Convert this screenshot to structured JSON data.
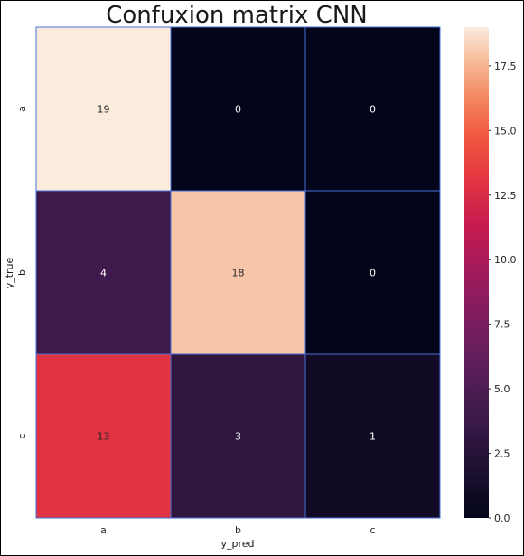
{
  "chart_data": {
    "type": "heatmap",
    "title": "Confuxion matrix CNN",
    "xlabel": "y_pred",
    "ylabel": "y_true",
    "x_categories": [
      "a",
      "b",
      "c"
    ],
    "y_categories": [
      "a",
      "b",
      "c"
    ],
    "values": [
      [
        19,
        0,
        0
      ],
      [
        4,
        18,
        0
      ],
      [
        13,
        3,
        1
      ]
    ],
    "colorbar": {
      "range": [
        0,
        19
      ],
      "ticks": [
        0.0,
        2.5,
        5.0,
        7.5,
        10.0,
        12.5,
        15.0,
        17.5
      ],
      "tick_labels": [
        "0.0",
        "2.5",
        "5.0",
        "7.5",
        "10.0",
        "12.5",
        "15.0",
        "17.5"
      ],
      "colormap": "rocket"
    },
    "cell_border_color": "#4a6fd8",
    "grid": false
  }
}
